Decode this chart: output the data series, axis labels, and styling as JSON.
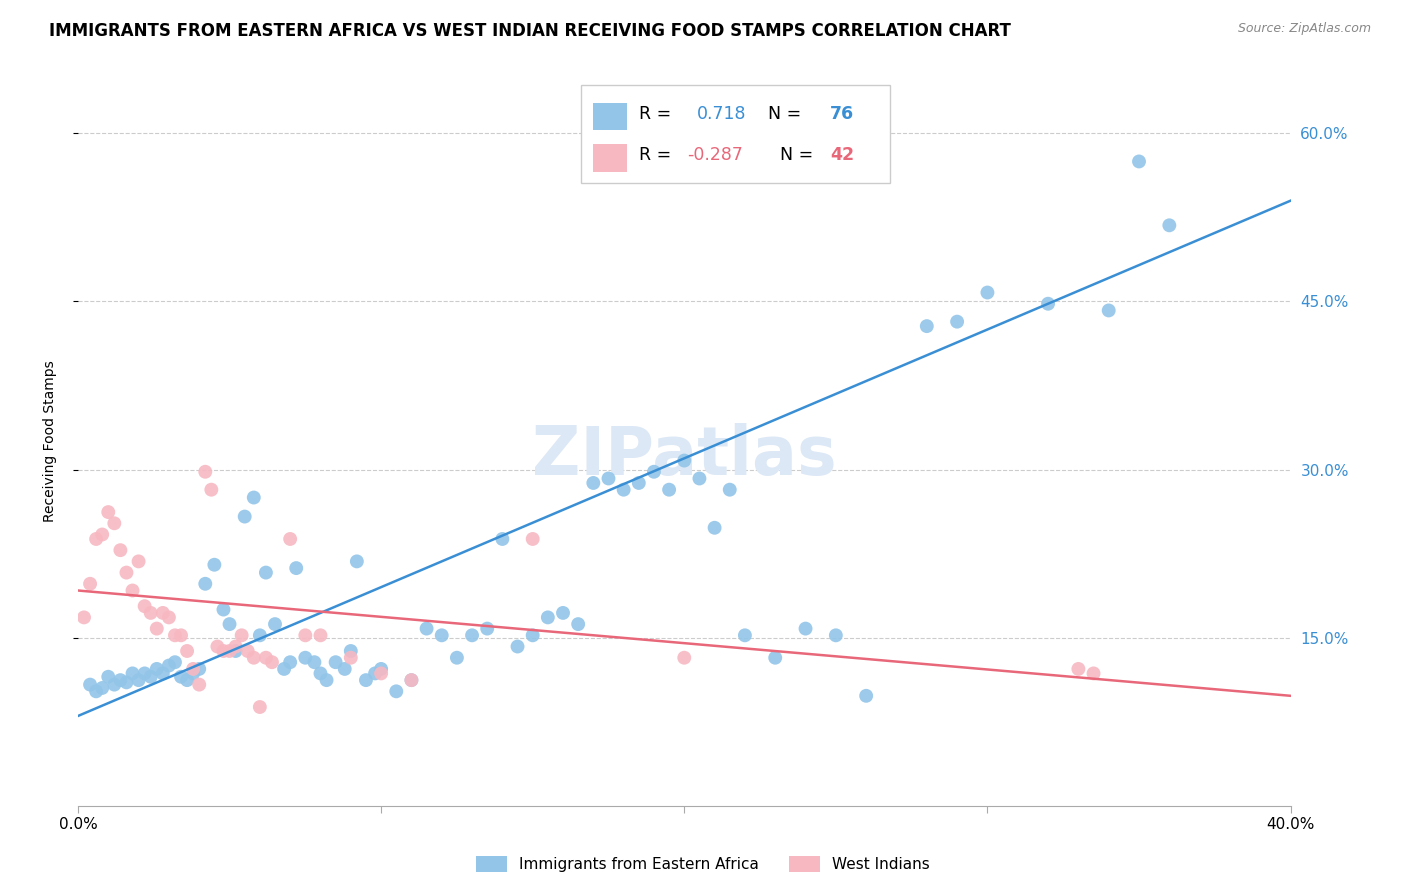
{
  "title": "IMMIGRANTS FROM EASTERN AFRICA VS WEST INDIAN RECEIVING FOOD STAMPS CORRELATION CHART",
  "source": "Source: ZipAtlas.com",
  "ylabel": "Receiving Food Stamps",
  "ytick_labels": [
    "15.0%",
    "30.0%",
    "45.0%",
    "60.0%"
  ],
  "ytick_values": [
    0.15,
    0.3,
    0.45,
    0.6
  ],
  "xlim": [
    0.0,
    0.4
  ],
  "ylim": [
    0.0,
    0.65
  ],
  "watermark": "ZIPatlas",
  "blue_r": "0.718",
  "blue_n": "76",
  "pink_r": "-0.287",
  "pink_n": "42",
  "blue_scatter_color": "#92c5e8",
  "pink_scatter_color": "#f7b8c2",
  "blue_line_color": "#3a8fd4",
  "pink_line_color": "#e8687a",
  "blue_scatter": [
    [
      0.004,
      0.108
    ],
    [
      0.006,
      0.102
    ],
    [
      0.008,
      0.105
    ],
    [
      0.01,
      0.115
    ],
    [
      0.012,
      0.108
    ],
    [
      0.014,
      0.112
    ],
    [
      0.016,
      0.11
    ],
    [
      0.018,
      0.118
    ],
    [
      0.02,
      0.112
    ],
    [
      0.022,
      0.118
    ],
    [
      0.024,
      0.115
    ],
    [
      0.026,
      0.122
    ],
    [
      0.028,
      0.118
    ],
    [
      0.03,
      0.125
    ],
    [
      0.032,
      0.128
    ],
    [
      0.034,
      0.115
    ],
    [
      0.036,
      0.112
    ],
    [
      0.038,
      0.118
    ],
    [
      0.04,
      0.122
    ],
    [
      0.042,
      0.198
    ],
    [
      0.045,
      0.215
    ],
    [
      0.048,
      0.175
    ],
    [
      0.05,
      0.162
    ],
    [
      0.052,
      0.138
    ],
    [
      0.055,
      0.258
    ],
    [
      0.058,
      0.275
    ],
    [
      0.06,
      0.152
    ],
    [
      0.062,
      0.208
    ],
    [
      0.065,
      0.162
    ],
    [
      0.068,
      0.122
    ],
    [
      0.07,
      0.128
    ],
    [
      0.072,
      0.212
    ],
    [
      0.075,
      0.132
    ],
    [
      0.078,
      0.128
    ],
    [
      0.08,
      0.118
    ],
    [
      0.082,
      0.112
    ],
    [
      0.085,
      0.128
    ],
    [
      0.088,
      0.122
    ],
    [
      0.09,
      0.138
    ],
    [
      0.092,
      0.218
    ],
    [
      0.095,
      0.112
    ],
    [
      0.098,
      0.118
    ],
    [
      0.1,
      0.122
    ],
    [
      0.105,
      0.102
    ],
    [
      0.11,
      0.112
    ],
    [
      0.115,
      0.158
    ],
    [
      0.12,
      0.152
    ],
    [
      0.125,
      0.132
    ],
    [
      0.13,
      0.152
    ],
    [
      0.135,
      0.158
    ],
    [
      0.14,
      0.238
    ],
    [
      0.145,
      0.142
    ],
    [
      0.15,
      0.152
    ],
    [
      0.155,
      0.168
    ],
    [
      0.16,
      0.172
    ],
    [
      0.165,
      0.162
    ],
    [
      0.17,
      0.288
    ],
    [
      0.175,
      0.292
    ],
    [
      0.18,
      0.282
    ],
    [
      0.185,
      0.288
    ],
    [
      0.19,
      0.298
    ],
    [
      0.195,
      0.282
    ],
    [
      0.2,
      0.308
    ],
    [
      0.205,
      0.292
    ],
    [
      0.21,
      0.248
    ],
    [
      0.215,
      0.282
    ],
    [
      0.22,
      0.152
    ],
    [
      0.23,
      0.132
    ],
    [
      0.24,
      0.158
    ],
    [
      0.25,
      0.152
    ],
    [
      0.26,
      0.098
    ],
    [
      0.28,
      0.428
    ],
    [
      0.29,
      0.432
    ],
    [
      0.3,
      0.458
    ],
    [
      0.32,
      0.448
    ],
    [
      0.34,
      0.442
    ],
    [
      0.35,
      0.575
    ],
    [
      0.36,
      0.518
    ]
  ],
  "pink_scatter": [
    [
      0.002,
      0.168
    ],
    [
      0.004,
      0.198
    ],
    [
      0.006,
      0.238
    ],
    [
      0.008,
      0.242
    ],
    [
      0.01,
      0.262
    ],
    [
      0.012,
      0.252
    ],
    [
      0.014,
      0.228
    ],
    [
      0.016,
      0.208
    ],
    [
      0.018,
      0.192
    ],
    [
      0.02,
      0.218
    ],
    [
      0.022,
      0.178
    ],
    [
      0.024,
      0.172
    ],
    [
      0.026,
      0.158
    ],
    [
      0.028,
      0.172
    ],
    [
      0.03,
      0.168
    ],
    [
      0.032,
      0.152
    ],
    [
      0.034,
      0.152
    ],
    [
      0.036,
      0.138
    ],
    [
      0.038,
      0.122
    ],
    [
      0.04,
      0.108
    ],
    [
      0.042,
      0.298
    ],
    [
      0.044,
      0.282
    ],
    [
      0.046,
      0.142
    ],
    [
      0.048,
      0.138
    ],
    [
      0.05,
      0.138
    ],
    [
      0.052,
      0.142
    ],
    [
      0.054,
      0.152
    ],
    [
      0.056,
      0.138
    ],
    [
      0.058,
      0.132
    ],
    [
      0.06,
      0.088
    ],
    [
      0.062,
      0.132
    ],
    [
      0.064,
      0.128
    ],
    [
      0.07,
      0.238
    ],
    [
      0.075,
      0.152
    ],
    [
      0.08,
      0.152
    ],
    [
      0.09,
      0.132
    ],
    [
      0.1,
      0.118
    ],
    [
      0.11,
      0.112
    ],
    [
      0.15,
      0.238
    ],
    [
      0.2,
      0.132
    ],
    [
      0.33,
      0.122
    ],
    [
      0.335,
      0.118
    ]
  ],
  "blue_line_x": [
    0.0,
    0.4
  ],
  "blue_line_y": [
    0.08,
    0.54
  ],
  "pink_line_x": [
    0.0,
    0.4
  ],
  "pink_line_y": [
    0.192,
    0.098
  ],
  "grid_color": "#cccccc",
  "background_color": "#ffffff",
  "title_fontsize": 12,
  "source_fontsize": 9,
  "watermark_fontsize": 48,
  "watermark_color": "#dce8f5",
  "tick_label_color_right": "#3a8fd4",
  "legend_label_color": "#3a8fd4",
  "bottom_legend_items": [
    {
      "label": "Immigrants from Eastern Africa",
      "color": "#92c5e8"
    },
    {
      "label": "West Indians",
      "color": "#f7b8c2"
    }
  ]
}
